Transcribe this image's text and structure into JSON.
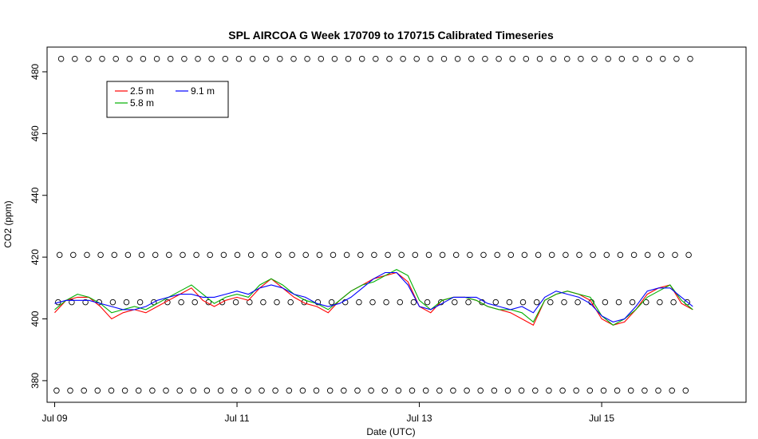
{
  "chart_data": {
    "type": "line",
    "title": "SPL AIRCOA G  Week 170709 to 170715  Calibrated Timeseries",
    "xlabel": "Date (UTC)",
    "ylabel": "CO2 (ppm)",
    "xlim": [
      "2017-07-08T22:00Z",
      "2017-07-16T14:00Z"
    ],
    "ylim": [
      373,
      488
    ],
    "x_ticks": [
      "Jul 09",
      "Jul 11",
      "Jul 13",
      "Jul 15"
    ],
    "y_ticks": [
      380,
      400,
      420,
      440,
      460,
      480
    ],
    "legend": {
      "position": "top-left",
      "entries": [
        {
          "name": "2.5 m",
          "color": "#ff0000"
        },
        {
          "name": "5.8 m",
          "color": "#00b000"
        },
        {
          "name": "9.1 m",
          "color": "#0000ff"
        }
      ]
    },
    "grid": false,
    "series": [
      {
        "name": "2.5 m",
        "color": "#ff0000",
        "x": [
          "2017-07-09T00:00Z",
          "2017-07-09T03:00Z",
          "2017-07-09T06:00Z",
          "2017-07-09T09:00Z",
          "2017-07-09T12:00Z",
          "2017-07-09T15:00Z",
          "2017-07-09T18:00Z",
          "2017-07-09T21:00Z",
          "2017-07-10T00:00Z",
          "2017-07-10T03:00Z",
          "2017-07-10T06:00Z",
          "2017-07-10T09:00Z",
          "2017-07-10T12:00Z",
          "2017-07-10T15:00Z",
          "2017-07-10T18:00Z",
          "2017-07-10T21:00Z",
          "2017-07-11T00:00Z",
          "2017-07-11T03:00Z",
          "2017-07-11T06:00Z",
          "2017-07-11T09:00Z",
          "2017-07-11T12:00Z",
          "2017-07-11T15:00Z",
          "2017-07-11T18:00Z",
          "2017-07-11T21:00Z",
          "2017-07-12T00:00Z",
          "2017-07-12T03:00Z",
          "2017-07-12T06:00Z",
          "2017-07-12T09:00Z",
          "2017-07-12T12:00Z",
          "2017-07-12T15:00Z",
          "2017-07-12T18:00Z",
          "2017-07-12T21:00Z",
          "2017-07-13T00:00Z",
          "2017-07-13T03:00Z",
          "2017-07-13T06:00Z",
          "2017-07-13T09:00Z",
          "2017-07-13T12:00Z",
          "2017-07-13T15:00Z",
          "2017-07-13T18:00Z",
          "2017-07-13T21:00Z",
          "2017-07-14T00:00Z",
          "2017-07-14T03:00Z",
          "2017-07-14T06:00Z",
          "2017-07-14T09:00Z",
          "2017-07-14T12:00Z",
          "2017-07-14T15:00Z",
          "2017-07-14T18:00Z",
          "2017-07-14T21:00Z",
          "2017-07-15T00:00Z",
          "2017-07-15T03:00Z",
          "2017-07-15T06:00Z",
          "2017-07-15T09:00Z",
          "2017-07-15T12:00Z",
          "2017-07-15T15:00Z",
          "2017-07-15T18:00Z",
          "2017-07-15T21:00Z",
          "2017-07-16T00:00Z"
        ],
        "y": [
          402,
          406,
          407,
          407,
          404,
          400,
          402,
          403,
          402,
          404,
          406,
          408,
          410,
          406,
          404,
          406,
          407,
          406,
          410,
          413,
          410,
          407,
          405,
          404,
          402,
          406,
          409,
          411,
          413,
          414,
          415,
          412,
          404,
          402,
          406,
          407,
          407,
          406,
          404,
          403,
          402,
          400,
          398,
          406,
          408,
          409,
          408,
          406,
          400,
          398,
          399,
          403,
          408,
          410,
          411,
          405,
          403
        ]
      },
      {
        "name": "5.8 m",
        "color": "#00b000",
        "x": [
          "2017-07-09T00:00Z",
          "2017-07-09T03:00Z",
          "2017-07-09T06:00Z",
          "2017-07-09T09:00Z",
          "2017-07-09T12:00Z",
          "2017-07-09T15:00Z",
          "2017-07-09T18:00Z",
          "2017-07-09T21:00Z",
          "2017-07-10T00:00Z",
          "2017-07-10T03:00Z",
          "2017-07-10T06:00Z",
          "2017-07-10T09:00Z",
          "2017-07-10T12:00Z",
          "2017-07-10T15:00Z",
          "2017-07-10T18:00Z",
          "2017-07-10T21:00Z",
          "2017-07-11T00:00Z",
          "2017-07-11T03:00Z",
          "2017-07-11T06:00Z",
          "2017-07-11T09:00Z",
          "2017-07-11T12:00Z",
          "2017-07-11T15:00Z",
          "2017-07-11T18:00Z",
          "2017-07-11T21:00Z",
          "2017-07-12T00:00Z",
          "2017-07-12T03:00Z",
          "2017-07-12T06:00Z",
          "2017-07-12T09:00Z",
          "2017-07-12T12:00Z",
          "2017-07-12T15:00Z",
          "2017-07-12T18:00Z",
          "2017-07-12T21:00Z",
          "2017-07-13T00:00Z",
          "2017-07-13T03:00Z",
          "2017-07-13T06:00Z",
          "2017-07-13T09:00Z",
          "2017-07-13T12:00Z",
          "2017-07-13T15:00Z",
          "2017-07-13T18:00Z",
          "2017-07-13T21:00Z",
          "2017-07-14T00:00Z",
          "2017-07-14T03:00Z",
          "2017-07-14T06:00Z",
          "2017-07-14T09:00Z",
          "2017-07-14T12:00Z",
          "2017-07-14T15:00Z",
          "2017-07-14T18:00Z",
          "2017-07-14T21:00Z",
          "2017-07-15T00:00Z",
          "2017-07-15T03:00Z",
          "2017-07-15T06:00Z",
          "2017-07-15T09:00Z",
          "2017-07-15T12:00Z",
          "2017-07-15T15:00Z",
          "2017-07-15T18:00Z",
          "2017-07-15T21:00Z",
          "2017-07-16T00:00Z"
        ],
        "y": [
          403,
          406,
          408,
          407,
          405,
          402,
          403,
          404,
          403,
          405,
          407,
          409,
          411,
          408,
          405,
          407,
          408,
          407,
          411,
          413,
          411,
          408,
          406,
          405,
          403,
          406,
          409,
          411,
          412,
          414,
          416,
          414,
          406,
          403,
          406,
          407,
          407,
          406,
          404,
          403,
          403,
          402,
          399,
          406,
          408,
          409,
          408,
          407,
          401,
          398,
          400,
          403,
          407,
          409,
          411,
          406,
          403
        ]
      },
      {
        "name": "9.1 m",
        "color": "#0000ff",
        "x": [
          "2017-07-09T00:00Z",
          "2017-07-09T03:00Z",
          "2017-07-09T06:00Z",
          "2017-07-09T09:00Z",
          "2017-07-09T12:00Z",
          "2017-07-09T15:00Z",
          "2017-07-09T18:00Z",
          "2017-07-09T21:00Z",
          "2017-07-10T00:00Z",
          "2017-07-10T03:00Z",
          "2017-07-10T06:00Z",
          "2017-07-10T09:00Z",
          "2017-07-10T12:00Z",
          "2017-07-10T15:00Z",
          "2017-07-10T18:00Z",
          "2017-07-10T21:00Z",
          "2017-07-11T00:00Z",
          "2017-07-11T03:00Z",
          "2017-07-11T06:00Z",
          "2017-07-11T09:00Z",
          "2017-07-11T12:00Z",
          "2017-07-11T15:00Z",
          "2017-07-11T18:00Z",
          "2017-07-11T21:00Z",
          "2017-07-12T00:00Z",
          "2017-07-12T03:00Z",
          "2017-07-12T06:00Z",
          "2017-07-12T09:00Z",
          "2017-07-12T12:00Z",
          "2017-07-12T15:00Z",
          "2017-07-12T18:00Z",
          "2017-07-12T21:00Z",
          "2017-07-13T00:00Z",
          "2017-07-13T03:00Z",
          "2017-07-13T06:00Z",
          "2017-07-13T09:00Z",
          "2017-07-13T12:00Z",
          "2017-07-13T15:00Z",
          "2017-07-13T18:00Z",
          "2017-07-13T21:00Z",
          "2017-07-14T00:00Z",
          "2017-07-14T03:00Z",
          "2017-07-14T06:00Z",
          "2017-07-14T09:00Z",
          "2017-07-14T12:00Z",
          "2017-07-14T15:00Z",
          "2017-07-14T18:00Z",
          "2017-07-14T21:00Z",
          "2017-07-15T00:00Z",
          "2017-07-15T03:00Z",
          "2017-07-15T06:00Z",
          "2017-07-15T09:00Z",
          "2017-07-15T12:00Z",
          "2017-07-15T15:00Z",
          "2017-07-15T18:00Z",
          "2017-07-15T21:00Z",
          "2017-07-16T00:00Z"
        ],
        "y": [
          405,
          406,
          406,
          406,
          405,
          404,
          403,
          403,
          404,
          406,
          407,
          408,
          408,
          407,
          407,
          408,
          409,
          408,
          410,
          411,
          410,
          408,
          407,
          405,
          404,
          405,
          407,
          410,
          413,
          415,
          415,
          411,
          404,
          403,
          405,
          407,
          407,
          407,
          405,
          404,
          403,
          404,
          402,
          407,
          409,
          408,
          407,
          405,
          401,
          399,
          400,
          404,
          409,
          410,
          410,
          407,
          404
        ]
      }
    ],
    "reference_markers": [
      {
        "y": 376.8,
        "spacing_hours": 3.6,
        "offset_hours": 0.5
      },
      {
        "y": 405.4,
        "spacing_hours": 3.6,
        "offset_hours": 0.9
      },
      {
        "y": 420.7,
        "spacing_hours": 3.6,
        "offset_hours": 1.3
      },
      {
        "y": 484.2,
        "spacing_hours": 3.6,
        "offset_hours": 1.7
      }
    ]
  }
}
